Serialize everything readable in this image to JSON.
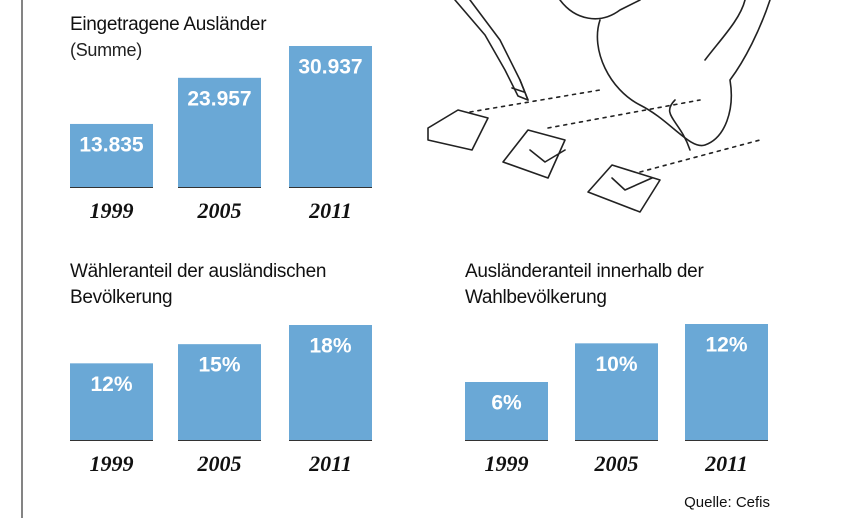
{
  "chart_data": [
    {
      "type": "bar",
      "title": "Eingetragene Ausländer",
      "subtitle": "(Summe)",
      "categories": [
        "1999",
        "2005",
        "2011"
      ],
      "values": [
        13835,
        23957,
        30937
      ],
      "value_labels": [
        "13.835",
        "23.957",
        "30.937"
      ],
      "color": "#6aa8d6"
    },
    {
      "type": "bar",
      "title": "Wähleranteil der ausländischen Bevölkerung",
      "categories": [
        "1999",
        "2005",
        "2011"
      ],
      "values": [
        12,
        15,
        18
      ],
      "value_labels": [
        "12%",
        "15%",
        "18%"
      ],
      "color": "#6aa8d6"
    },
    {
      "type": "bar",
      "title": "Ausländeranteil innerhalb der Wahlbevölkerung",
      "categories": [
        "1999",
        "2005",
        "2011"
      ],
      "values": [
        6,
        10,
        12
      ],
      "value_labels": [
        "6%",
        "10%",
        "12%"
      ],
      "color": "#6aa8d6"
    }
  ],
  "source": "Quelle: Cefis"
}
